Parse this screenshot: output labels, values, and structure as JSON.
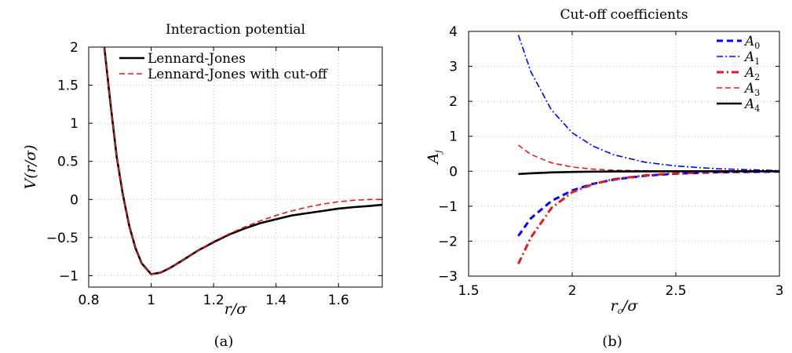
{
  "chart_data": [
    {
      "type": "line",
      "title": "Interaction potential",
      "xlabel": "r/σ",
      "ylabel": "V(r/σ)",
      "caption": "(a)",
      "xlim": [
        0.8,
        1.74
      ],
      "ylim": [
        -1.15,
        2.0
      ],
      "xticks": [
        "0.8",
        "1",
        "1.2",
        "1.4",
        "1.6"
      ],
      "yticks": [
        "2",
        "1.5",
        "1",
        "0.5",
        "0",
        "−0.5",
        "−1"
      ],
      "grid": true,
      "legend_position": "top-right",
      "series": [
        {
          "name": "Lennard-Jones",
          "color": "#000000",
          "style": "solid",
          "x": [
            0.85,
            0.87,
            0.89,
            0.91,
            0.93,
            0.95,
            0.97,
            1.0,
            1.03,
            1.06,
            1.1,
            1.15,
            1.2,
            1.25,
            1.3,
            1.35,
            1.4,
            1.45,
            1.5,
            1.55,
            1.6,
            1.65,
            1.7,
            1.74
          ],
          "y": [
            2.0,
            1.25,
            0.55,
            0.05,
            -0.35,
            -0.64,
            -0.84,
            -0.98,
            -0.96,
            -0.9,
            -0.8,
            -0.67,
            -0.56,
            -0.46,
            -0.38,
            -0.31,
            -0.26,
            -0.21,
            -0.18,
            -0.15,
            -0.12,
            -0.1,
            -0.085,
            -0.07
          ]
        },
        {
          "name": "Lennard-Jones with cut-off",
          "color": "#e31a1c",
          "style": "dashed",
          "x": [
            0.85,
            0.87,
            0.89,
            0.91,
            0.93,
            0.95,
            0.97,
            1.0,
            1.03,
            1.06,
            1.1,
            1.15,
            1.2,
            1.25,
            1.3,
            1.35,
            1.4,
            1.45,
            1.5,
            1.55,
            1.6,
            1.65,
            1.7,
            1.74
          ],
          "y": [
            2.0,
            1.25,
            0.55,
            0.05,
            -0.35,
            -0.64,
            -0.84,
            -0.98,
            -0.96,
            -0.9,
            -0.8,
            -0.67,
            -0.55,
            -0.45,
            -0.36,
            -0.28,
            -0.21,
            -0.15,
            -0.1,
            -0.06,
            -0.03,
            -0.01,
            0.0,
            0.0
          ]
        }
      ]
    },
    {
      "type": "line",
      "title": "Cut-off coefficients",
      "xlabel": "r_c/σ",
      "ylabel": "A_j",
      "caption": "(b)",
      "xlim": [
        1.5,
        3.0
      ],
      "ylim": [
        -3,
        4
      ],
      "xticks": [
        "1.5",
        "2",
        "2.5",
        "3"
      ],
      "yticks": [
        "4",
        "3",
        "2",
        "1",
        "0",
        "−1",
        "−2",
        "−3"
      ],
      "grid": true,
      "legend_position": "top-right",
      "series": [
        {
          "name": "A_0",
          "color": "#0000ff",
          "style": "dashed-thick",
          "x": [
            1.74,
            1.8,
            1.9,
            2.0,
            2.1,
            2.2,
            2.35,
            2.5,
            2.7,
            3.0
          ],
          "y": [
            -1.85,
            -1.35,
            -0.85,
            -0.55,
            -0.36,
            -0.24,
            -0.13,
            -0.07,
            -0.03,
            -0.01
          ]
        },
        {
          "name": "A_1",
          "color": "#0000ff",
          "style": "dashdot",
          "x": [
            1.74,
            1.8,
            1.9,
            2.0,
            2.1,
            2.2,
            2.35,
            2.5,
            2.7,
            3.0
          ],
          "y": [
            3.9,
            2.85,
            1.75,
            1.1,
            0.72,
            0.47,
            0.26,
            0.15,
            0.07,
            0.02
          ]
        },
        {
          "name": "A_2",
          "color": "#e31a1c",
          "style": "dashdot-thick",
          "x": [
            1.74,
            1.8,
            1.9,
            2.0,
            2.1,
            2.2,
            2.35,
            2.5,
            2.7,
            3.0
          ],
          "y": [
            -2.65,
            -1.9,
            -1.05,
            -0.6,
            -0.37,
            -0.23,
            -0.12,
            -0.06,
            -0.02,
            0.0
          ]
        },
        {
          "name": "A_3",
          "color": "#e31a1c",
          "style": "dashed",
          "x": [
            1.74,
            1.8,
            1.9,
            2.0,
            2.1,
            2.2,
            2.35,
            2.5,
            2.7,
            3.0
          ],
          "y": [
            0.75,
            0.48,
            0.24,
            0.12,
            0.06,
            0.03,
            0.015,
            0.005,
            0.0,
            0.0
          ]
        },
        {
          "name": "A_4",
          "color": "#000000",
          "style": "solid",
          "x": [
            1.74,
            1.8,
            1.9,
            2.0,
            2.1,
            2.2,
            2.35,
            2.5,
            2.7,
            3.0
          ],
          "y": [
            -0.08,
            -0.06,
            -0.035,
            -0.02,
            -0.012,
            -0.007,
            -0.003,
            -0.001,
            0.0,
            0.0
          ]
        }
      ]
    }
  ]
}
